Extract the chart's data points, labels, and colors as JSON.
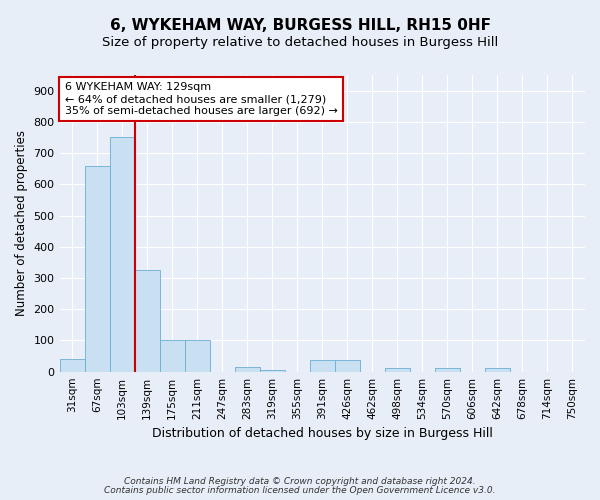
{
  "title": "6, WYKEHAM WAY, BURGESS HILL, RH15 0HF",
  "subtitle": "Size of property relative to detached houses in Burgess Hill",
  "xlabel": "Distribution of detached houses by size in Burgess Hill",
  "ylabel": "Number of detached properties",
  "footnote1": "Contains HM Land Registry data © Crown copyright and database right 2024.",
  "footnote2": "Contains public sector information licensed under the Open Government Licence v3.0.",
  "bar_labels": [
    "31sqm",
    "67sqm",
    "103sqm",
    "139sqm",
    "175sqm",
    "211sqm",
    "247sqm",
    "283sqm",
    "319sqm",
    "355sqm",
    "391sqm",
    "426sqm",
    "462sqm",
    "498sqm",
    "534sqm",
    "570sqm",
    "606sqm",
    "642sqm",
    "678sqm",
    "714sqm",
    "750sqm"
  ],
  "bar_values": [
    42,
    660,
    750,
    325,
    100,
    100,
    0,
    15,
    5,
    0,
    37,
    37,
    0,
    12,
    0,
    12,
    0,
    12,
    0,
    0,
    0
  ],
  "bar_color": "#c9dff2",
  "bar_edgecolor": "#6baed6",
  "red_line_x": 2.5,
  "annotation_text": "6 WYKEHAM WAY: 129sqm\n← 64% of detached houses are smaller (1,279)\n35% of semi-detached houses are larger (692) →",
  "annotation_box_color": "white",
  "annotation_box_edgecolor": "#cc0000",
  "red_line_color": "#cc0000",
  "ylim": [
    0,
    950
  ],
  "yticks": [
    0,
    100,
    200,
    300,
    400,
    500,
    600,
    700,
    800,
    900
  ],
  "bg_color": "#e8eef8",
  "grid_color": "#ffffff",
  "title_fontsize": 11,
  "subtitle_fontsize": 9.5,
  "xlabel_fontsize": 9,
  "ylabel_fontsize": 8.5,
  "tick_fontsize": 7.5,
  "annotation_fontsize": 8
}
